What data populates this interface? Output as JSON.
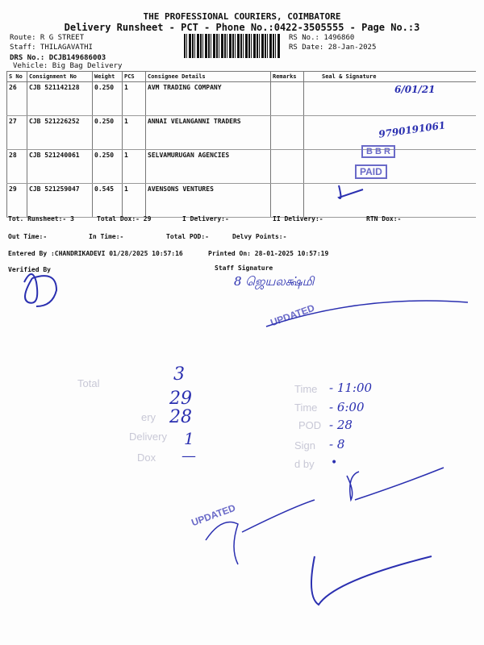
{
  "header": {
    "company": "THE PROFESSIONAL COURIERS, COIMBATORE",
    "subtitle": "Delivery Runsheet - PCT - Phone No.:0422-3505555 - Page No.:3",
    "route": "Route: R G STREET",
    "staff": "Staff: THILAGAVATHI",
    "drs_no": "DRS No.: DCJB149686003",
    "vehicle": "Vehicle: Big Bag Delivery",
    "rs_no": "RS No.: 1496860",
    "rs_date": "RS Date: 28-Jan-2025"
  },
  "table": {
    "columns": [
      "S No",
      "Consignment No",
      "Weight",
      "PCS",
      "Consignee Details",
      "Remarks",
      "Seal & Signature"
    ],
    "rows": [
      {
        "sno": "26",
        "consignment": "CJB 521142128",
        "weight": "0.250",
        "pcs": "1",
        "consignee": "AVM TRADING COMPANY",
        "signature": "6/01/21"
      },
      {
        "sno": "27",
        "consignment": "CJB 521226252",
        "weight": "0.250",
        "pcs": "1",
        "consignee": "ANNAI VELANGANNI TRADERS",
        "signature": "9790191061"
      },
      {
        "sno": "28",
        "consignment": "CJB 521240061",
        "weight": "0.250",
        "pcs": "1",
        "consignee": "SELVAMURUGAN AGENCIES",
        "signature": "BBR PAID"
      },
      {
        "sno": "29",
        "consignment": "CJB 521259047",
        "weight": "0.545",
        "pcs": "1",
        "consignee": "AVENSONS VENTURES",
        "signature": ""
      }
    ]
  },
  "footer": {
    "tot_runsheet": "Tot. Runsheet:- 3",
    "total_dox": "Total Dox:-   29",
    "i_delivery": "I Delivery:-",
    "ii_delivery": "II Delivery:-",
    "rtn_dox": "RTN Dox:-",
    "out_time": "Out Time:-",
    "in_time": "In Time:-",
    "total_pod": "Total POD:-",
    "delvy_points": "Delvy Points:-",
    "entered_by": "Entered By :CHANDRIKADEVI 01/28/2025 10:57:16",
    "printed_on": "Printed On: 28-01-2025 10:57:19",
    "verified_by": "Verified By",
    "staff_signature": "Staff Signature"
  },
  "stamps": {
    "updated_1": "UPDATED",
    "updated_2": "UPDATED",
    "bbr": "B B R",
    "paid": "PAID"
  },
  "handwritten_summary": {
    "labels": [
      "Total",
      "ery",
      "Delivery",
      "Dox",
      "Time",
      "Time",
      "POD",
      "Sign",
      "d by"
    ],
    "values": [
      "3",
      "29",
      "28",
      "1",
      "—",
      "- 11:00",
      "- 6:00",
      "- 28",
      "- 8",
      "•"
    ],
    "staff_sign": "8 ஜெயலக்ஷ்மி"
  },
  "colors": {
    "ink": "#2a2fb0",
    "stamp": "#6a6ac8"
  }
}
